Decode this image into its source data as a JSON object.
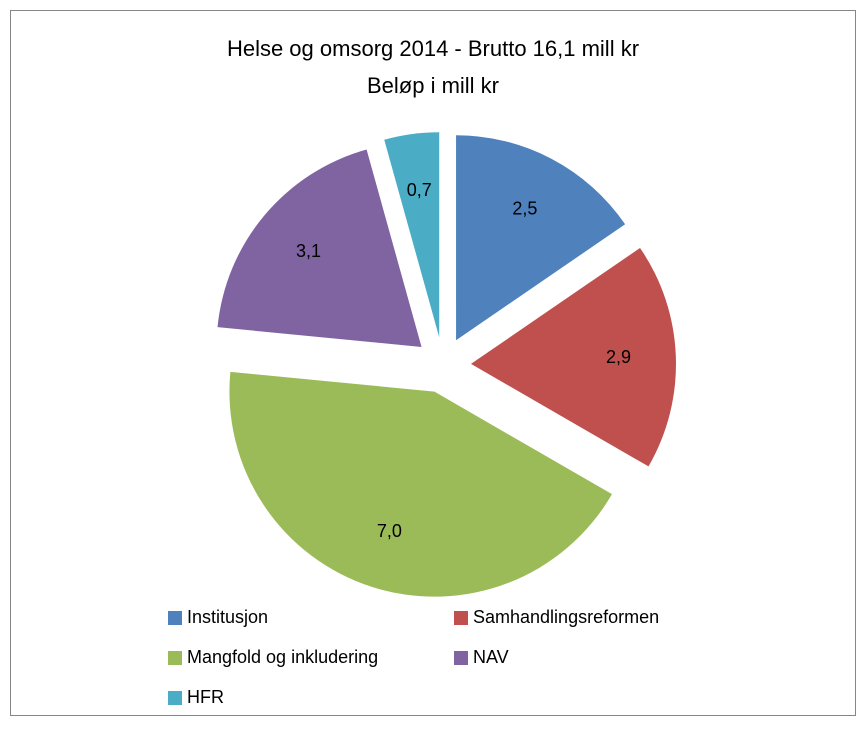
{
  "chart_data": {
    "type": "pie",
    "title": "Helse og omsorg 2014 - Brutto 16,1 mill kr",
    "subtitle": "Beløp i mill kr",
    "categories": [
      "Institusjon",
      "Samhandlingsreformen",
      "Mangfold og inkludering",
      "NAV",
      "HFR"
    ],
    "values": [
      2.5,
      2.9,
      7.0,
      3.1,
      0.7
    ],
    "value_labels": [
      "2,5",
      "2,9",
      "7,0",
      "3,1",
      "0,7"
    ],
    "colors": [
      "#4f81bd",
      "#c0504d",
      "#9bbb59",
      "#8064a2",
      "#4bacc6"
    ],
    "legend": "bottom"
  }
}
